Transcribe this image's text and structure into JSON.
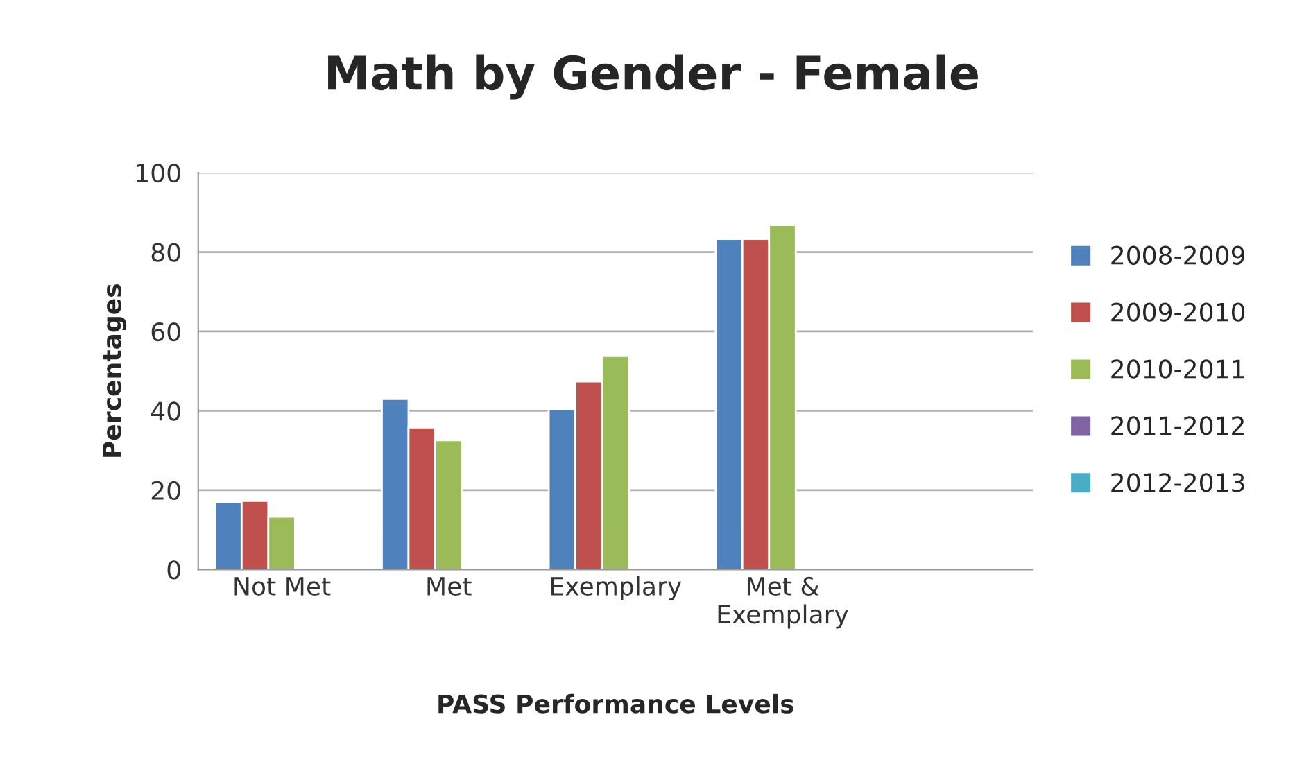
{
  "chart_data": {
    "type": "bar",
    "title": "Math by Gender - Female",
    "xlabel": "PASS Performance Levels",
    "ylabel": "Percentages",
    "categories": [
      "Not Met",
      "Met",
      "Exemplary",
      "Met &\nExemplary",
      null
    ],
    "series": [
      {
        "name": "2008-2009",
        "color": "#4f81bd",
        "values": [
          17,
          43,
          40.3,
          83.3,
          null
        ]
      },
      {
        "name": "2009-2010",
        "color": "#c0504d",
        "values": [
          17.3,
          35.8,
          47.4,
          83.3,
          null
        ]
      },
      {
        "name": "2010-2011",
        "color": "#9bbb59",
        "values": [
          13.3,
          32.6,
          53.8,
          86.8,
          null
        ]
      },
      {
        "name": "2011-2012",
        "color": "#8064a2",
        "values": [
          null,
          null,
          null,
          null,
          null
        ]
      },
      {
        "name": "2012-2013",
        "color": "#4bacc6",
        "values": [
          null,
          null,
          null,
          null,
          null
        ]
      }
    ],
    "ylim": [
      0,
      100
    ],
    "yticks": [
      0,
      20,
      40,
      60,
      80,
      100
    ],
    "grid": "y",
    "legend": "right"
  }
}
